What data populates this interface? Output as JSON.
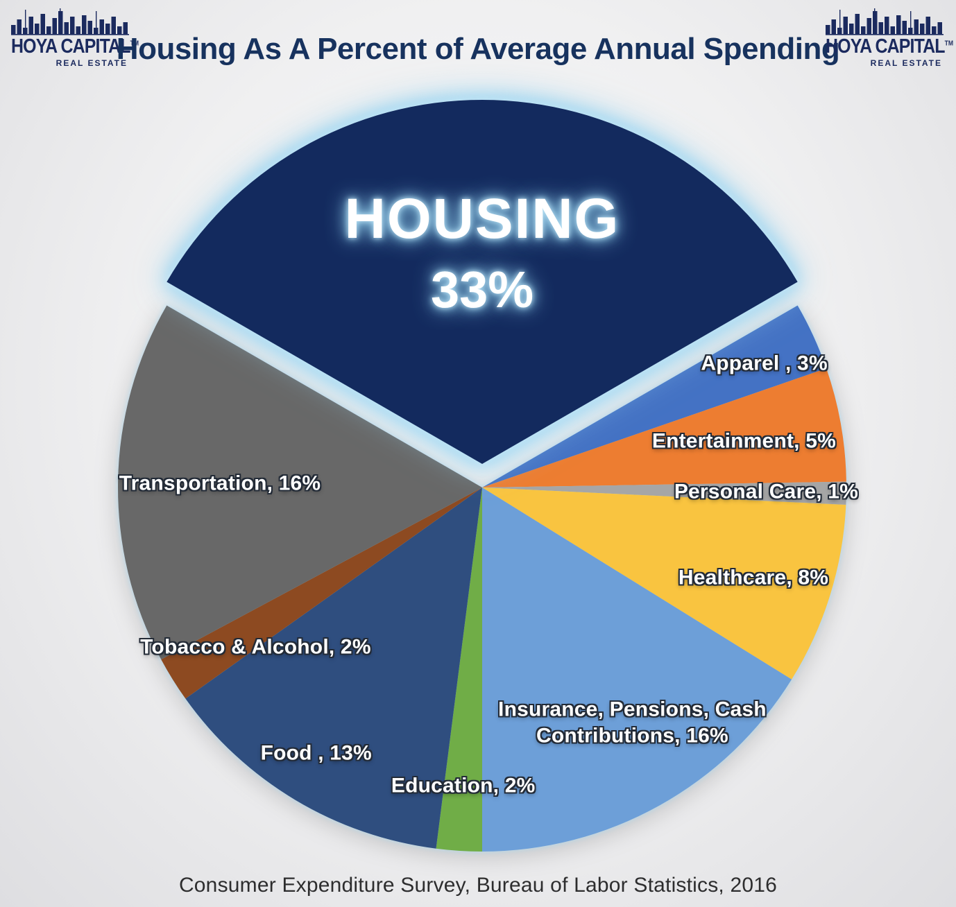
{
  "header": {
    "title": "Housing As A Percent of Average Annual Spending"
  },
  "logo": {
    "name": "HOYA CAPITAL",
    "trademark": "TM",
    "subtitle": "REAL ESTATE"
  },
  "footer": {
    "source": "Consumer Expenditure Survey, Bureau of Labor Statistics, 2016"
  },
  "chart_data": {
    "type": "pie",
    "title": "Housing As A Percent of Average Annual Spending",
    "source": "Consumer Expenditure Survey, Bureau of Labor Statistics, 2016",
    "unit": "percent",
    "direction": "clockwise",
    "start_anchor": "Housing slice centered at 12 o'clock",
    "exploded_slice": "Housing",
    "series": [
      {
        "label": "Housing",
        "value": 33,
        "display_lines": [
          "HOUSING",
          "33%"
        ],
        "color": "#132a5e",
        "exploded": true
      },
      {
        "label": "Apparel",
        "value": 3,
        "display": "Apparel , 3%",
        "color": "#4472c4"
      },
      {
        "label": "Entertainment",
        "value": 5,
        "display": "Entertainment, 5%",
        "color": "#ed7d31"
      },
      {
        "label": "Personal Care",
        "value": 1,
        "display": "Personal Care, 1%",
        "color": "#a6a6a6"
      },
      {
        "label": "Healthcare",
        "value": 8,
        "display": "Healthcare, 8%",
        "color": "#f9c440"
      },
      {
        "label": "Insurance, Pensions, Cash Contributions",
        "value": 16,
        "display": "Insurance, Pensions, Cash\nContributions, 16%",
        "color": "#6d9fd8"
      },
      {
        "label": "Education",
        "value": 2,
        "display": "Education, 2%",
        "color": "#70ad47"
      },
      {
        "label": "Food",
        "value": 13,
        "display": "Food , 13%",
        "color": "#2f4e7f"
      },
      {
        "label": "Tobacco & Alcohol",
        "value": 2,
        "display": "Tobacco & Alcohol, 2%",
        "color": "#8d4a21"
      },
      {
        "label": "Transportation",
        "value": 16,
        "display": "Transportation, 16%",
        "color": "#686868"
      }
    ]
  }
}
